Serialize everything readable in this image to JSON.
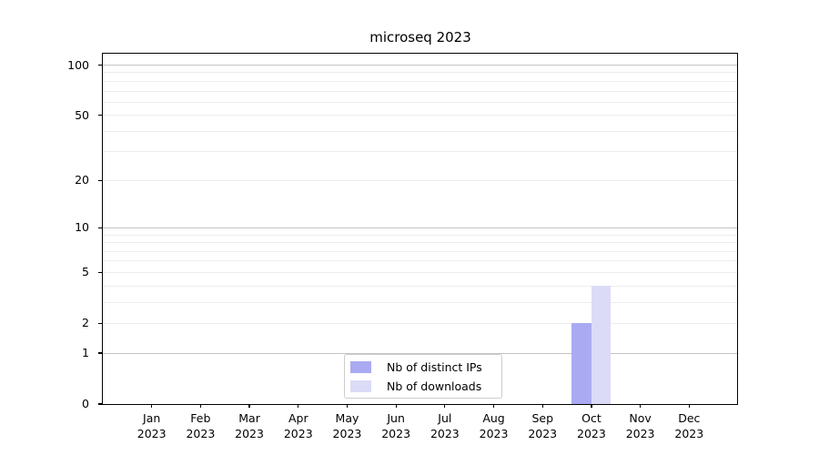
{
  "page": {
    "background": "#ffffff"
  },
  "chart_data": {
    "type": "bar",
    "title": "microseq 2023",
    "categories": [
      "Jan 2023",
      "Feb 2023",
      "Mar 2023",
      "Apr 2023",
      "May 2023",
      "Jun 2023",
      "Jul 2023",
      "Aug 2023",
      "Sep 2023",
      "Oct 2023",
      "Nov 2023",
      "Dec 2023"
    ],
    "series": [
      {
        "name": "Nb of distinct IPs",
        "color": "#aaaaf2",
        "values": [
          0,
          0,
          0,
          0,
          0,
          0,
          0,
          0,
          0,
          2,
          0,
          0
        ]
      },
      {
        "name": "Nb of downloads",
        "color": "#dbdbf7",
        "values": [
          0,
          0,
          0,
          0,
          0,
          0,
          0,
          0,
          0,
          4,
          0,
          0
        ]
      }
    ],
    "xlabel": "",
    "ylabel": "",
    "y_axis": {
      "scale": "log1p",
      "tick_values": [
        0,
        1,
        2,
        5,
        10,
        20,
        50,
        100
      ],
      "tick_labels": [
        "0",
        "1",
        "2",
        "5",
        "10",
        "20",
        "50",
        "100"
      ],
      "major_grid_values": [
        1,
        10,
        100
      ],
      "minor_grid_values": [
        2,
        3,
        4,
        5,
        6,
        7,
        8,
        9,
        20,
        30,
        40,
        50,
        60,
        70,
        80,
        90
      ],
      "ylim_top_approx": 117
    },
    "legend": {
      "position": "bottom-center"
    },
    "grid": "horizontal",
    "colors": {
      "major_grid": "#c3c3c3",
      "minor_grid": "#ededed",
      "axis": "#000000",
      "text": "#000000"
    }
  }
}
